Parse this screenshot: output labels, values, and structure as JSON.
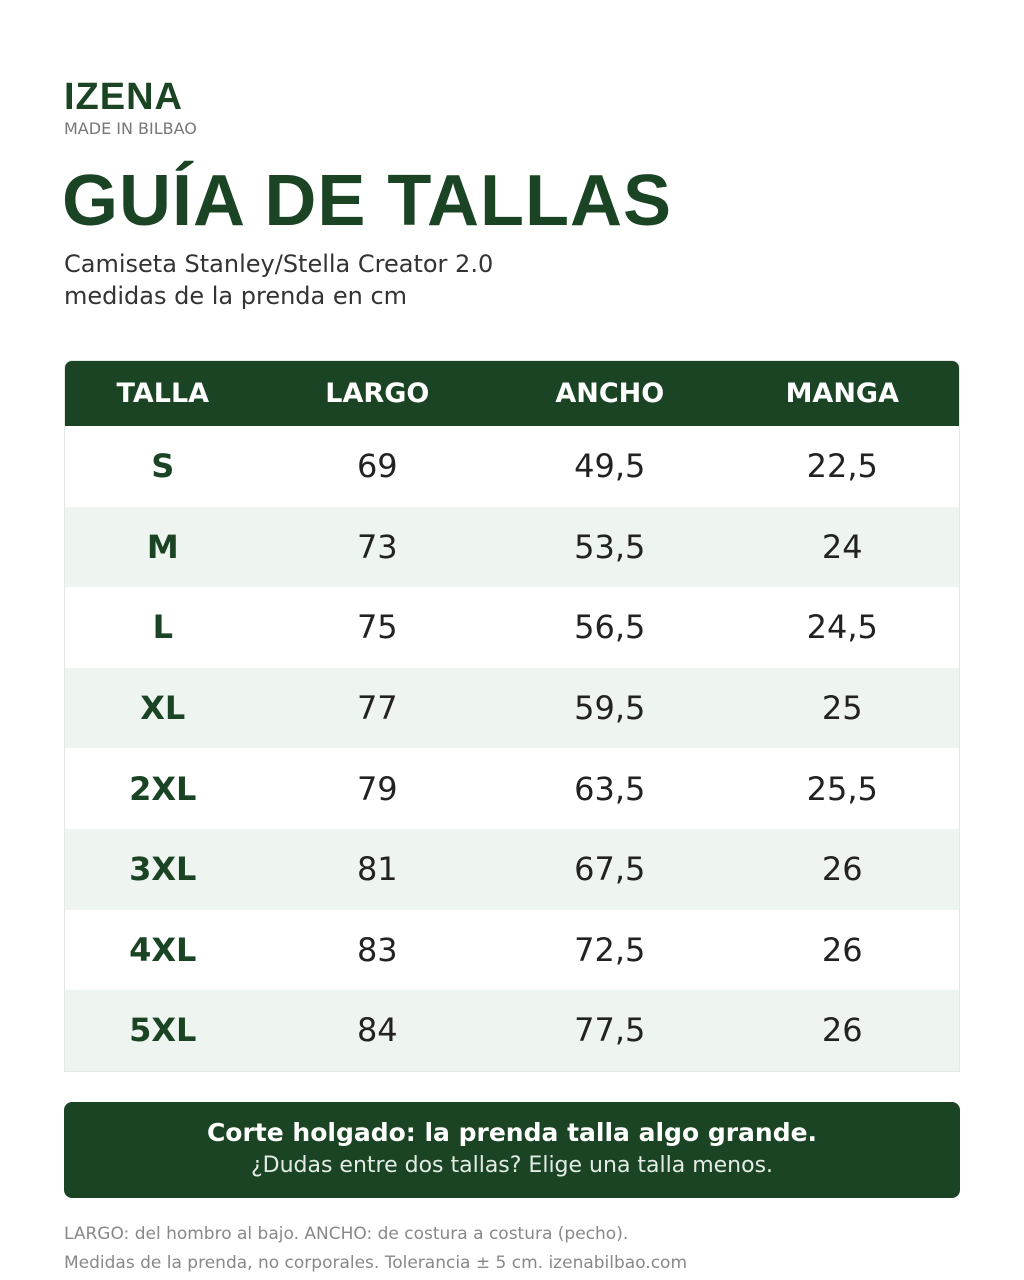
{
  "brand": {
    "name": "IZENA",
    "tagline": "MADE IN BILBAO"
  },
  "header": {
    "title": "GUÍA DE TALLAS",
    "subtitle": "Camiseta Stanley/Stella Creator 2.0",
    "subtitle2": "medidas de la prenda en cm"
  },
  "table": {
    "columns": [
      "TALLA",
      "LARGO",
      "ANCHO",
      "MANGA"
    ],
    "rows": [
      [
        "S",
        "69",
        "49,5",
        "22,5"
      ],
      [
        "M",
        "73",
        "53,5",
        "24"
      ],
      [
        "L",
        "75",
        "56,5",
        "24,5"
      ],
      [
        "XL",
        "77",
        "59,5",
        "25"
      ],
      [
        "2XL",
        "79",
        "63,5",
        "25,5"
      ],
      [
        "3XL",
        "81",
        "67,5",
        "26"
      ],
      [
        "4XL",
        "83",
        "72,5",
        "26"
      ],
      [
        "5XL",
        "84",
        "77,5",
        "26"
      ]
    ]
  },
  "notice": {
    "title": "Corte holgado: la prenda talla algo grande.",
    "text": "¿Dudas entre dos tallas? Elige una talla menos."
  },
  "footer": {
    "line1": "LARGO: del hombro al bajo. ANCHO: de costura a costura (pecho).",
    "line2": "Medidas de la prenda, no corporales. Tolerancia ± 5 cm.  izenabilbao.com"
  }
}
